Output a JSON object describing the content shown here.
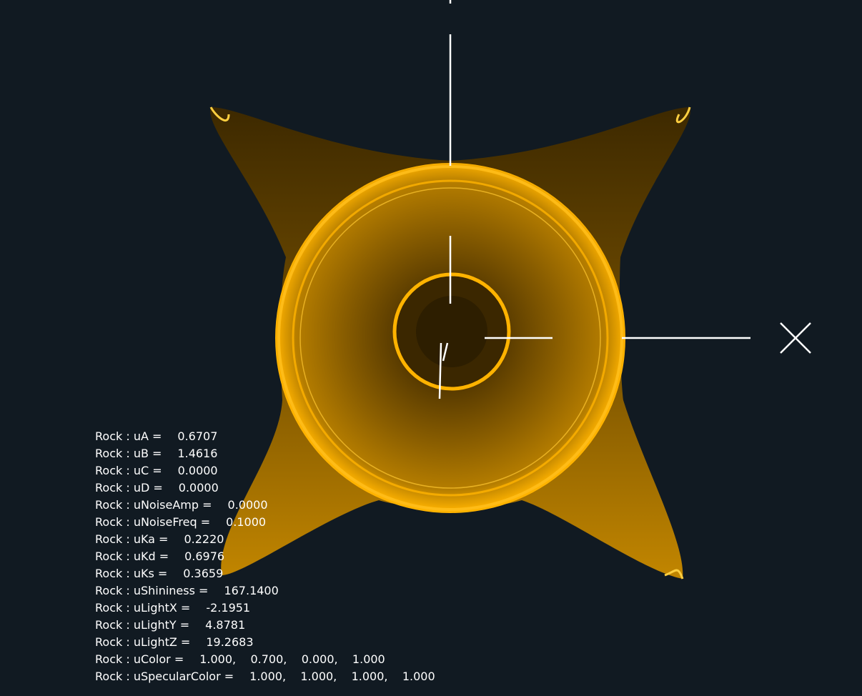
{
  "scene": {
    "object": "Rock",
    "colors": {
      "background": "#111a22",
      "surface": "#ffb300",
      "surface_dark": "#3a2600",
      "axes": "#ffffff"
    },
    "axes_labels": {
      "x": "X"
    }
  },
  "params": [
    {
      "label": "Rock : uA =",
      "value": "0.6707"
    },
    {
      "label": "Rock : uB =",
      "value": "1.4616"
    },
    {
      "label": "Rock : uC =",
      "value": "0.0000"
    },
    {
      "label": "Rock : uD =",
      "value": "0.0000"
    },
    {
      "label": "Rock : uNoiseAmp =",
      "value": "0.0000"
    },
    {
      "label": "Rock : uNoiseFreq =",
      "value": "0.1000"
    },
    {
      "label": "Rock : uKa =",
      "value": "0.2220"
    },
    {
      "label": "Rock : uKd =",
      "value": "0.6976"
    },
    {
      "label": "Rock : uKs =",
      "value": "0.3659"
    },
    {
      "label": "Rock : uShininess =",
      "value": "167.1400"
    },
    {
      "label": "Rock : uLightX =",
      "value": "-2.1951"
    },
    {
      "label": "Rock : uLightY =",
      "value": "4.8781"
    },
    {
      "label": "Rock : uLightZ =",
      "value": "19.2683"
    },
    {
      "label": "Rock : uColor =",
      "value": "1.000,    0.700,    0.000,    1.000"
    },
    {
      "label": "Rock : uSpecularColor =",
      "value": "1.000,    1.000,    1.000,    1.000"
    }
  ]
}
